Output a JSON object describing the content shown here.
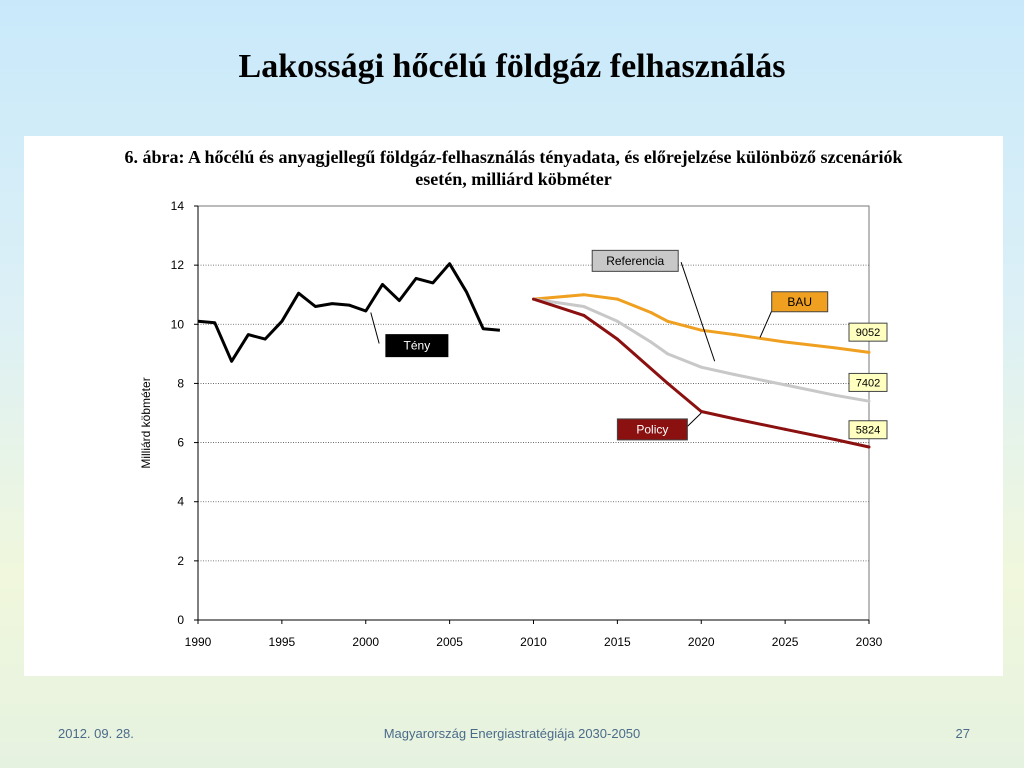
{
  "slide": {
    "title": "Lakossági hőcélú földgáz felhasználás",
    "footer_date": "2012. 09. 28.",
    "footer_center": "Magyarország Energiastratégiája 2030-2050",
    "page_number": "27"
  },
  "colors": {
    "teny": "#000000",
    "bau": "#f0a020",
    "referencia": "#c8c8c8",
    "policy": "#8b1010",
    "value_box": "#ffffc0"
  },
  "chart_data": {
    "type": "line",
    "title_line1": "6. ábra: A hőcélú és anyagjellegű földgáz-felhasználás tényadata, és előrejelzése különböző szcenáriók",
    "title_line2": "esetén, milliárd köbméter",
    "ylabel": "Milliárd köbméter",
    "xlim": [
      1990,
      2030
    ],
    "ylim": [
      0,
      14
    ],
    "x_ticks": [
      1990,
      1995,
      2000,
      2005,
      2010,
      2015,
      2020,
      2025,
      2030
    ],
    "y_ticks": [
      0,
      2,
      4,
      6,
      8,
      10,
      12,
      14
    ],
    "grid": "horizontal",
    "series": [
      {
        "name": "Tény",
        "key": "teny",
        "x": [
          1990,
          1991,
          1992,
          1993,
          1994,
          1995,
          1996,
          1997,
          1998,
          1999,
          2000,
          2001,
          2002,
          2003,
          2004,
          2005,
          2006,
          2007,
          2008
        ],
        "y": [
          10.1,
          10.05,
          8.75,
          9.65,
          9.5,
          10.1,
          11.05,
          10.6,
          10.7,
          10.65,
          10.45,
          11.35,
          10.8,
          11.55,
          11.4,
          12.05,
          11.1,
          9.85,
          9.8
        ]
      },
      {
        "name": "BAU",
        "key": "bau",
        "x": [
          2010,
          2012,
          2013,
          2015,
          2017,
          2018,
          2020,
          2022,
          2025,
          2028,
          2030
        ],
        "y": [
          10.85,
          10.95,
          11.0,
          10.85,
          10.4,
          10.1,
          9.8,
          9.65,
          9.4,
          9.2,
          9.05
        ]
      },
      {
        "name": "Referencia",
        "key": "referencia",
        "x": [
          2010,
          2013,
          2015,
          2017,
          2018,
          2020,
          2022,
          2025,
          2028,
          2030
        ],
        "y": [
          10.85,
          10.6,
          10.1,
          9.4,
          9.0,
          8.55,
          8.3,
          7.95,
          7.6,
          7.4
        ]
      },
      {
        "name": "Policy",
        "key": "policy",
        "x": [
          2010,
          2013,
          2015,
          2016,
          2018,
          2020,
          2022,
          2025,
          2028,
          2030
        ],
        "y": [
          10.85,
          10.3,
          9.5,
          9.0,
          8.0,
          7.05,
          6.8,
          6.45,
          6.1,
          5.85
        ]
      }
    ],
    "value_labels": [
      "9052",
      "7402",
      "5824"
    ]
  }
}
